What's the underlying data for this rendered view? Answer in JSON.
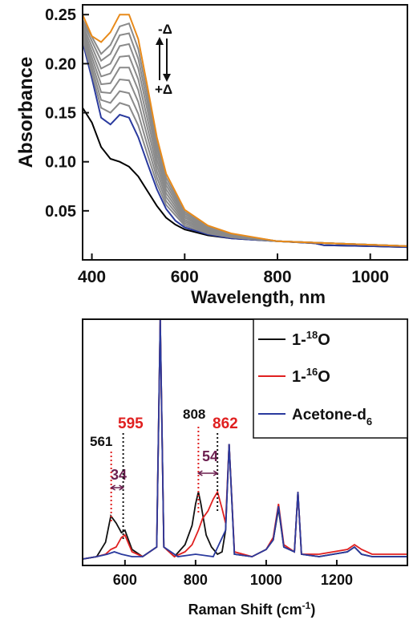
{
  "chart_data": [
    {
      "type": "line",
      "xlabel": "Wavelength, nm",
      "ylabel": "Absorbance",
      "xlim": [
        380,
        1080
      ],
      "ylim": [
        0.0,
        0.26
      ],
      "xticks": [
        400,
        600,
        800,
        1000
      ],
      "xtick_labels": [
        "400",
        "600",
        "800",
        "1000"
      ],
      "yticks": [
        0.05,
        0.1,
        0.15,
        0.2,
        0.25
      ],
      "ytick_labels": [
        "0.05",
        "0.10",
        "0.15",
        "0.20",
        "0.25"
      ],
      "annotations": [
        {
          "text": "-Δ",
          "at": [
            520,
            0.245
          ]
        },
        {
          "text": "+Δ",
          "at": [
            520,
            0.195
          ]
        }
      ],
      "series": [
        {
          "color": "#000000",
          "x": [
            380,
            400,
            420,
            440,
            460,
            480,
            500,
            520,
            540,
            560,
            580,
            600,
            650,
            700,
            800,
            880,
            900,
            1000,
            1080
          ],
          "y": [
            0.155,
            0.14,
            0.115,
            0.103,
            0.1,
            0.095,
            0.085,
            0.07,
            0.055,
            0.043,
            0.036,
            0.031,
            0.025,
            0.022,
            0.019,
            0.017,
            0.015,
            0.014,
            0.013
          ]
        },
        {
          "color": "#2a3a9e",
          "x": [
            380,
            400,
            420,
            440,
            460,
            480,
            500,
            520,
            540,
            560,
            580,
            600,
            650,
            700,
            800,
            880,
            900,
            1000,
            1080
          ],
          "y": [
            0.222,
            0.185,
            0.145,
            0.138,
            0.148,
            0.145,
            0.125,
            0.098,
            0.072,
            0.052,
            0.04,
            0.033,
            0.026,
            0.022,
            0.019,
            0.017,
            0.015,
            0.014,
            0.013
          ]
        },
        {
          "color": "#8a8a8a",
          "x": [
            380,
            420,
            440,
            460,
            480,
            500,
            520,
            540,
            560,
            600,
            650,
            700,
            800,
            1080
          ],
          "y": [
            0.225,
            0.155,
            0.15,
            0.16,
            0.157,
            0.137,
            0.107,
            0.078,
            0.056,
            0.035,
            0.027,
            0.023,
            0.019,
            0.014
          ]
        },
        {
          "color": "#8a8a8a",
          "x": [
            380,
            420,
            440,
            460,
            480,
            500,
            520,
            540,
            560,
            600,
            650,
            700,
            800,
            1080
          ],
          "y": [
            0.228,
            0.163,
            0.16,
            0.172,
            0.17,
            0.149,
            0.116,
            0.084,
            0.06,
            0.037,
            0.028,
            0.023,
            0.019,
            0.014
          ]
        },
        {
          "color": "#8a8a8a",
          "x": [
            380,
            420,
            440,
            460,
            480,
            500,
            520,
            540,
            560,
            600,
            650,
            700,
            800,
            1080
          ],
          "y": [
            0.231,
            0.171,
            0.17,
            0.184,
            0.183,
            0.161,
            0.125,
            0.09,
            0.064,
            0.039,
            0.029,
            0.024,
            0.019,
            0.014
          ]
        },
        {
          "color": "#8a8a8a",
          "x": [
            380,
            420,
            440,
            460,
            480,
            500,
            520,
            540,
            560,
            600,
            650,
            700,
            800,
            1080
          ],
          "y": [
            0.234,
            0.179,
            0.18,
            0.196,
            0.196,
            0.173,
            0.134,
            0.096,
            0.068,
            0.041,
            0.03,
            0.024,
            0.019,
            0.014
          ]
        },
        {
          "color": "#8a8a8a",
          "x": [
            380,
            420,
            440,
            460,
            480,
            500,
            520,
            540,
            560,
            600,
            650,
            700,
            800,
            1080
          ],
          "y": [
            0.237,
            0.187,
            0.19,
            0.207,
            0.208,
            0.184,
            0.143,
            0.102,
            0.072,
            0.043,
            0.031,
            0.025,
            0.019,
            0.014
          ]
        },
        {
          "color": "#8a8a8a",
          "x": [
            380,
            420,
            440,
            460,
            480,
            500,
            520,
            540,
            560,
            600,
            650,
            700,
            800,
            1080
          ],
          "y": [
            0.24,
            0.195,
            0.2,
            0.218,
            0.22,
            0.195,
            0.152,
            0.108,
            0.076,
            0.045,
            0.032,
            0.025,
            0.019,
            0.014
          ]
        },
        {
          "color": "#8a8a8a",
          "x": [
            380,
            420,
            440,
            460,
            480,
            500,
            520,
            540,
            560,
            600,
            650,
            700,
            800,
            1080
          ],
          "y": [
            0.243,
            0.203,
            0.21,
            0.229,
            0.231,
            0.205,
            0.16,
            0.114,
            0.08,
            0.047,
            0.033,
            0.026,
            0.019,
            0.014
          ]
        },
        {
          "color": "#8a8a8a",
          "x": [
            380,
            420,
            440,
            460,
            480,
            500,
            520,
            540,
            560,
            600,
            650,
            700,
            800,
            1080
          ],
          "y": [
            0.245,
            0.21,
            0.219,
            0.238,
            0.241,
            0.215,
            0.168,
            0.119,
            0.084,
            0.049,
            0.034,
            0.026,
            0.019,
            0.014
          ]
        },
        {
          "color": "#e88a1a",
          "x": [
            380,
            400,
            420,
            440,
            460,
            480,
            500,
            520,
            540,
            560,
            600,
            650,
            700,
            800,
            1080
          ],
          "y": [
            0.25,
            0.228,
            0.222,
            0.232,
            0.25,
            0.25,
            0.225,
            0.176,
            0.125,
            0.088,
            0.051,
            0.035,
            0.027,
            0.019,
            0.014
          ]
        }
      ]
    },
    {
      "type": "line",
      "xlabel": "Raman Shift (cm-1)",
      "xlim": [
        480,
        1400
      ],
      "ylim": [
        0,
        1.0
      ],
      "xticks": [
        600,
        800,
        1000,
        1200
      ],
      "xtick_labels": [
        "600",
        "800",
        "1000",
        "1200"
      ],
      "legend_position": "top-right",
      "series": [
        {
          "name": "1-18O",
          "color": "#111111",
          "x": [
            480,
            520,
            545,
            560,
            575,
            590,
            600,
            620,
            650,
            690,
            700,
            710,
            740,
            770,
            790,
            800,
            808,
            815,
            830,
            845,
            862,
            875,
            885,
            895,
            910,
            960,
            1000,
            1020,
            1035,
            1050,
            1080,
            1090,
            1100,
            1150,
            1230,
            1250,
            1270,
            1300,
            1400
          ],
          "y": [
            0.0,
            0.01,
            0.07,
            0.18,
            0.15,
            0.11,
            0.12,
            0.04,
            0.01,
            0.05,
            1.0,
            0.05,
            0.01,
            0.06,
            0.14,
            0.23,
            0.28,
            0.23,
            0.1,
            0.05,
            0.02,
            0.03,
            0.12,
            0.48,
            0.02,
            0.01,
            0.04,
            0.08,
            0.21,
            0.05,
            0.03,
            0.28,
            0.02,
            0.01,
            0.03,
            0.05,
            0.02,
            0.01,
            0.01
          ]
        },
        {
          "name": "1-16O",
          "color": "#e02020",
          "x": [
            480,
            520,
            545,
            560,
            575,
            590,
            600,
            620,
            650,
            690,
            700,
            710,
            740,
            770,
            790,
            808,
            820,
            835,
            850,
            862,
            875,
            885,
            895,
            910,
            960,
            1000,
            1020,
            1035,
            1050,
            1080,
            1090,
            1100,
            1150,
            1230,
            1250,
            1270,
            1300,
            1400
          ],
          "y": [
            0.0,
            0.01,
            0.02,
            0.04,
            0.05,
            0.09,
            0.1,
            0.03,
            0.01,
            0.05,
            1.0,
            0.05,
            0.01,
            0.03,
            0.06,
            0.12,
            0.17,
            0.2,
            0.25,
            0.28,
            0.21,
            0.15,
            0.48,
            0.03,
            0.01,
            0.04,
            0.09,
            0.23,
            0.06,
            0.03,
            0.28,
            0.02,
            0.02,
            0.04,
            0.06,
            0.04,
            0.02,
            0.02
          ]
        },
        {
          "name": "Acetone-d6",
          "color": "#2a3a9e",
          "x": [
            480,
            520,
            550,
            570,
            590,
            620,
            650,
            690,
            700,
            710,
            750,
            800,
            850,
            885,
            895,
            910,
            960,
            1000,
            1020,
            1035,
            1050,
            1080,
            1090,
            1100,
            1150,
            1230,
            1250,
            1270,
            1300,
            1400
          ],
          "y": [
            0.0,
            0.01,
            0.02,
            0.03,
            0.02,
            0.01,
            0.01,
            0.05,
            1.0,
            0.05,
            0.01,
            0.02,
            0.01,
            0.12,
            0.48,
            0.02,
            0.01,
            0.04,
            0.08,
            0.22,
            0.05,
            0.03,
            0.28,
            0.02,
            0.01,
            0.03,
            0.05,
            0.02,
            0.01,
            0.01
          ]
        }
      ],
      "annotations": [
        {
          "text": "561",
          "color": "#111111"
        },
        {
          "text": "595",
          "color": "#e02020"
        },
        {
          "text": "34",
          "color": "#6b1f4f"
        },
        {
          "text": "808",
          "color": "#111111"
        },
        {
          "text": "862",
          "color": "#e02020"
        },
        {
          "text": "54",
          "color": "#6b1f4f"
        }
      ]
    }
  ],
  "top": {
    "ylabel": "Absorbance",
    "xlabel": "Wavelength, nm",
    "ann_minus": "-Δ",
    "ann_plus": "+Δ"
  },
  "bottom": {
    "xlabel_main": "Raman Shift (cm",
    "xlabel_sup": "-1",
    "xlabel_close": ")",
    "legend": [
      {
        "prefix": "1-",
        "sup": "18",
        "suffix": "O",
        "color": "#111111"
      },
      {
        "prefix": "1-",
        "sup": "16",
        "suffix": "O",
        "color": "#e02020"
      },
      {
        "prefix": "Acetone-d",
        "sub": "6",
        "color": "#2a3a9e"
      }
    ],
    "ann": {
      "p561": "561",
      "p595": "595",
      "d34": "34",
      "p808": "808",
      "p862": "862",
      "d54": "54"
    },
    "colors": {
      "shift": "#6b1f4f",
      "black": "#111111",
      "red": "#e02020"
    }
  }
}
